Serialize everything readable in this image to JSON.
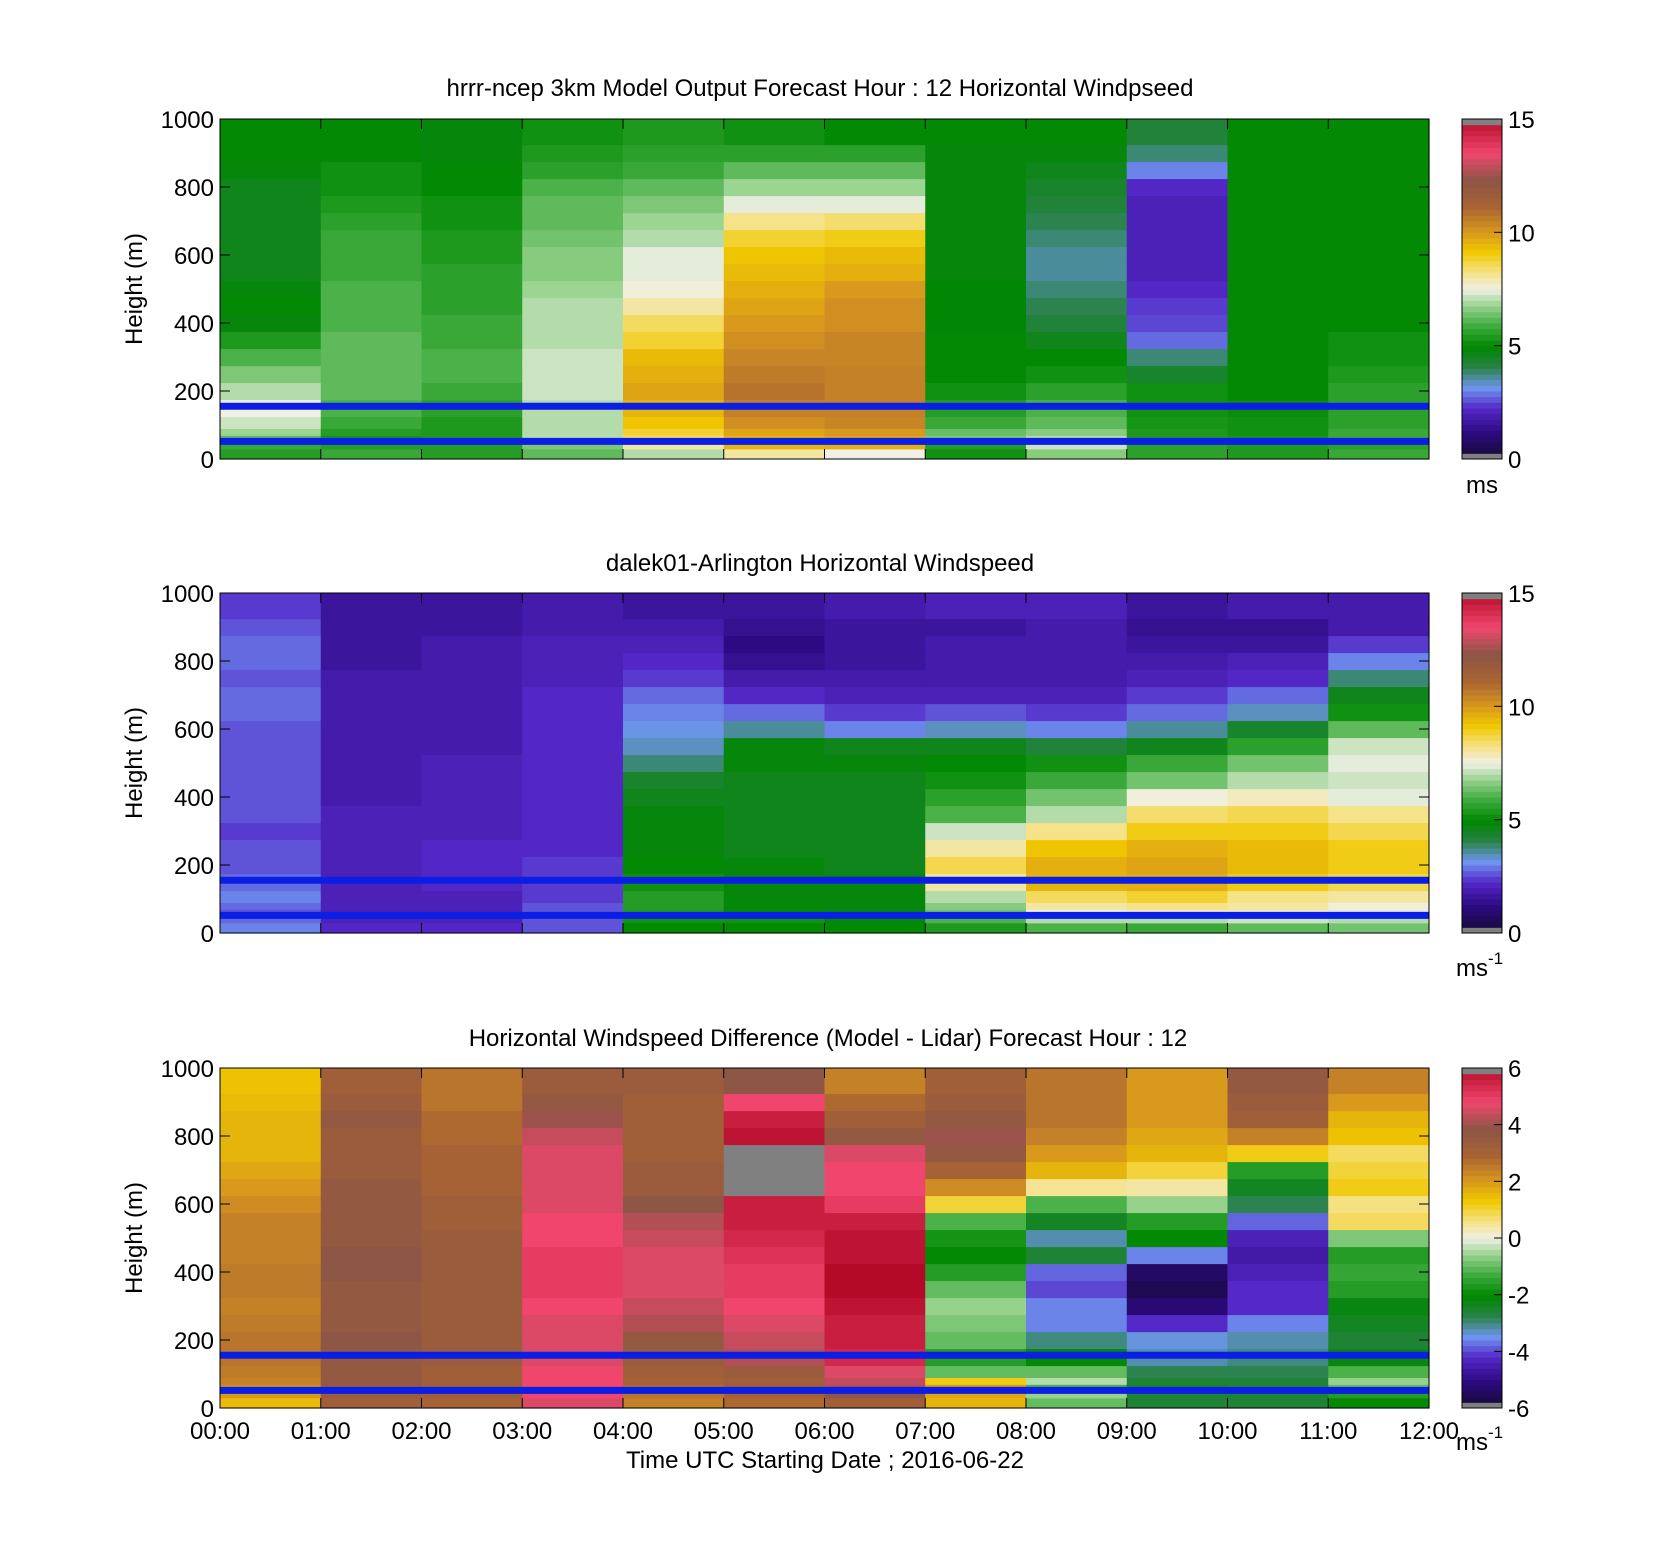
{
  "chart_data": [
    {
      "type": "heatmap",
      "title": "hrrr-ncep 3km Model Output   Forecast Hour : 12 Horizontal Windpseed",
      "ylabel": "Height (m)",
      "xlabel": "",
      "ylim": [
        0,
        1000
      ],
      "xlim": [
        0,
        12
      ],
      "yticks": [
        "0",
        "200",
        "400",
        "600",
        "800",
        "1000"
      ],
      "x_tick_count": 12,
      "x": [
        0,
        1,
        2,
        3,
        4,
        5,
        6,
        7,
        8,
        9,
        10,
        11
      ],
      "heights": [
        20,
        40,
        60,
        80,
        100,
        150,
        200,
        250,
        300,
        350,
        400,
        450,
        500,
        550,
        600,
        650,
        700,
        750,
        800,
        850,
        900,
        950
      ],
      "values": [
        [
          5.5,
          5.8,
          6.2,
          6.8,
          7.2,
          7.5,
          7.0,
          6.5,
          6.0,
          5.4,
          4.8,
          5.0,
          4.8,
          4.6,
          4.6,
          4.6,
          4.6,
          4.6,
          4.6,
          4.8,
          5.0,
          5.0
        ],
        [
          5.8,
          5.5,
          5.3,
          5.5,
          5.8,
          6.0,
          6.2,
          6.2,
          6.2,
          6.2,
          6.0,
          6.0,
          6.0,
          5.8,
          5.8,
          5.8,
          5.6,
          5.4,
          5.2,
          5.2,
          5.0,
          5.0
        ],
        [
          5.5,
          5.5,
          5.4,
          5.4,
          5.4,
          5.6,
          5.8,
          6.0,
          6.0,
          5.8,
          5.8,
          5.6,
          5.6,
          5.6,
          5.4,
          5.4,
          5.2,
          5.2,
          5.0,
          5.0,
          4.8,
          4.8
        ],
        [
          6.2,
          6.5,
          7.0,
          7.0,
          7.0,
          7.0,
          7.2,
          7.2,
          7.2,
          7.0,
          7.0,
          7.0,
          6.8,
          6.6,
          6.6,
          6.4,
          6.2,
          6.2,
          6.0,
          5.6,
          5.4,
          5.2
        ],
        [
          7.0,
          8.0,
          8.5,
          8.8,
          9.2,
          9.5,
          9.8,
          9.6,
          9.4,
          8.8,
          8.5,
          8.0,
          7.6,
          7.4,
          7.4,
          7.0,
          6.8,
          6.5,
          6.2,
          5.8,
          5.6,
          5.4
        ],
        [
          8.0,
          9.5,
          9.5,
          9.8,
          10.2,
          10.5,
          10.8,
          10.6,
          10.4,
          10.2,
          10.0,
          9.8,
          9.6,
          9.4,
          9.2,
          8.8,
          8.2,
          7.4,
          6.8,
          6.2,
          5.6,
          5.2
        ],
        [
          7.5,
          9.6,
          9.8,
          10.0,
          10.4,
          10.5,
          10.5,
          10.5,
          10.4,
          10.4,
          10.2,
          10.2,
          10.0,
          9.6,
          9.4,
          9.0,
          8.4,
          7.4,
          6.8,
          6.2,
          5.6,
          5.0
        ],
        [
          5.2,
          5.5,
          6.5,
          6.3,
          5.8,
          5.5,
          5.2,
          5.0,
          5.0,
          5.0,
          4.9,
          4.9,
          4.9,
          4.8,
          4.8,
          4.8,
          4.8,
          4.8,
          4.8,
          4.8,
          4.8,
          5.0
        ],
        [
          6.6,
          7.2,
          7.0,
          6.6,
          6.2,
          6.0,
          5.6,
          5.2,
          5.0,
          4.6,
          4.2,
          4.0,
          3.8,
          3.6,
          3.6,
          3.8,
          4.0,
          4.2,
          4.4,
          4.6,
          4.8,
          5.0
        ],
        [
          5.6,
          5.6,
          5.4,
          5.4,
          5.3,
          5.2,
          5.2,
          4.4,
          3.8,
          2.8,
          2.5,
          2.4,
          2.2,
          2.0,
          2.0,
          2.0,
          2.0,
          2.0,
          2.2,
          3.0,
          3.8,
          4.2
        ],
        [
          5.4,
          5.4,
          5.3,
          5.2,
          5.2,
          5.1,
          5.0,
          5.0,
          5.0,
          5.0,
          5.0,
          5.0,
          5.0,
          5.0,
          5.0,
          5.0,
          5.0,
          5.0,
          5.0,
          5.0,
          5.0,
          5.0
        ],
        [
          5.8,
          5.6,
          5.8,
          5.8,
          5.6,
          5.6,
          5.6,
          5.4,
          5.2,
          5.2,
          5.0,
          5.0,
          5.0,
          5.0,
          5.0,
          5.0,
          5.0,
          5.0,
          5.0,
          5.0,
          5.0,
          5.0
        ]
      ],
      "reference_lines_m": [
        155,
        52
      ],
      "colorbar": {
        "min": 0,
        "max": 15,
        "ticks": [
          "0",
          "5",
          "10",
          "15"
        ],
        "unit": "ms"
      },
      "colors": {
        "reference_line": "#0a1ee6",
        "missing": "#808080"
      }
    },
    {
      "type": "heatmap",
      "title": "dalek01-Arlington  Horizontal Windspeed",
      "ylabel": "Height (m)",
      "xlabel": "",
      "ylim": [
        0,
        1000
      ],
      "xlim": [
        0,
        12
      ],
      "yticks": [
        "0",
        "200",
        "400",
        "600",
        "800",
        "1000"
      ],
      "x_tick_count": 12,
      "x": [
        0,
        1,
        2,
        3,
        4,
        5,
        6,
        7,
        8,
        9,
        10,
        11
      ],
      "heights": [
        20,
        40,
        60,
        80,
        100,
        150,
        200,
        250,
        300,
        350,
        400,
        450,
        500,
        550,
        600,
        650,
        700,
        750,
        800,
        850,
        900,
        950
      ],
      "values": [
        [
          3.0,
          2.8,
          2.6,
          2.8,
          3.0,
          2.8,
          2.6,
          2.6,
          2.4,
          2.6,
          2.6,
          2.6,
          2.6,
          2.6,
          2.6,
          2.8,
          2.8,
          2.6,
          2.8,
          2.8,
          2.6,
          2.4
        ],
        [
          2.2,
          2.0,
          2.0,
          2.0,
          2.0,
          2.0,
          2.0,
          2.0,
          2.0,
          2.0,
          1.8,
          1.8,
          1.8,
          1.8,
          1.8,
          1.8,
          1.8,
          1.8,
          1.6,
          1.6,
          1.6,
          1.6
        ],
        [
          2.2,
          2.0,
          2.0,
          2.0,
          2.0,
          2.2,
          2.2,
          2.2,
          2.0,
          2.0,
          2.0,
          2.0,
          2.0,
          1.8,
          1.8,
          1.8,
          1.8,
          1.8,
          1.8,
          1.8,
          1.6,
          1.6
        ],
        [
          2.6,
          2.6,
          2.6,
          2.6,
          2.4,
          2.4,
          2.4,
          2.2,
          2.2,
          2.2,
          2.2,
          2.2,
          2.2,
          2.2,
          2.2,
          2.2,
          2.2,
          2.0,
          2.0,
          2.0,
          1.8,
          1.8
        ],
        [
          5.0,
          5.2,
          5.4,
          5.5,
          5.5,
          5.2,
          5.0,
          4.8,
          4.8,
          4.8,
          4.6,
          4.4,
          3.8,
          3.4,
          3.2,
          3.0,
          2.8,
          2.4,
          2.2,
          2.0,
          1.8,
          1.6
        ],
        [
          5.0,
          5.2,
          5.0,
          5.0,
          4.8,
          4.8,
          4.8,
          4.6,
          4.6,
          4.6,
          4.6,
          4.6,
          4.8,
          4.8,
          3.6,
          2.8,
          2.2,
          1.8,
          1.4,
          1.2,
          1.4,
          1.6
        ],
        [
          5.0,
          4.8,
          4.8,
          4.8,
          4.8,
          4.8,
          4.6,
          4.6,
          4.6,
          4.6,
          4.6,
          4.6,
          4.8,
          4.6,
          3.0,
          2.4,
          2.0,
          1.8,
          1.6,
          1.6,
          1.6,
          1.8
        ],
        [
          5.4,
          6.0,
          6.4,
          6.6,
          7.0,
          8.0,
          8.6,
          8.0,
          7.2,
          6.0,
          5.6,
          5.2,
          5.0,
          4.6,
          3.4,
          2.6,
          2.0,
          1.8,
          1.8,
          1.8,
          1.6,
          2.0
        ],
        [
          6.0,
          7.0,
          7.6,
          8.0,
          8.5,
          9.5,
          9.6,
          9.2,
          8.2,
          7.0,
          6.4,
          5.8,
          5.2,
          4.2,
          3.0,
          2.4,
          2.0,
          1.8,
          1.8,
          1.8,
          1.8,
          2.0
        ],
        [
          5.8,
          7.0,
          7.8,
          8.2,
          8.8,
          9.6,
          9.8,
          9.6,
          9.0,
          8.4,
          7.6,
          6.4,
          5.8,
          4.6,
          3.6,
          2.8,
          2.4,
          2.0,
          1.8,
          1.6,
          1.4,
          1.6
        ],
        [
          6.2,
          7.2,
          7.8,
          8.0,
          8.2,
          9.0,
          9.4,
          9.4,
          9.0,
          8.6,
          7.8,
          7.0,
          6.4,
          5.6,
          4.4,
          3.4,
          2.8,
          2.2,
          2.0,
          1.6,
          1.4,
          1.8
        ],
        [
          6.4,
          7.0,
          7.4,
          7.6,
          8.0,
          8.6,
          9.0,
          9.0,
          8.6,
          8.2,
          7.4,
          7.2,
          7.4,
          7.2,
          6.2,
          5.2,
          4.6,
          3.8,
          3.0,
          2.4,
          1.8,
          1.8
        ]
      ],
      "reference_lines_m": [
        155,
        52
      ],
      "colorbar": {
        "min": 0,
        "max": 15,
        "ticks": [
          "0",
          "5",
          "10",
          "15"
        ],
        "unit": "ms",
        "unit_exp": "-1"
      },
      "colors": {
        "reference_line": "#0a1ee6",
        "missing": "#808080"
      }
    },
    {
      "type": "heatmap",
      "title": "Horizontal Windspeed Difference (Model - Lidar) Forecast Hour : 12",
      "ylabel": "Height (m)",
      "xlabel": "Time UTC  Starting Date ; 2016-06-22",
      "ylim": [
        0,
        1000
      ],
      "xlim": [
        0,
        12
      ],
      "yticks": [
        "0",
        "200",
        "400",
        "600",
        "800",
        "1000"
      ],
      "xticks": [
        "00:00",
        "01:00",
        "02:00",
        "03:00",
        "04:00",
        "05:00",
        "06:00",
        "07:00",
        "08:00",
        "09:00",
        "10:00",
        "11:00",
        "12:00"
      ],
      "x": [
        0,
        1,
        2,
        3,
        4,
        5,
        6,
        7,
        8,
        9,
        10,
        11
      ],
      "heights": [
        20,
        40,
        60,
        80,
        100,
        150,
        200,
        250,
        300,
        350,
        400,
        450,
        500,
        550,
        600,
        650,
        700,
        750,
        800,
        850,
        900,
        950
      ],
      "values": [
        [
          1.5,
          2.0,
          2.2,
          2.4,
          2.5,
          2.6,
          2.6,
          2.5,
          2.4,
          2.5,
          2.5,
          2.4,
          2.4,
          2.4,
          2.2,
          2.0,
          1.8,
          1.6,
          1.6,
          1.6,
          1.5,
          1.4
        ],
        [
          3.2,
          3.4,
          3.5,
          3.6,
          3.6,
          3.6,
          3.8,
          3.6,
          3.6,
          3.6,
          3.8,
          3.8,
          3.6,
          3.6,
          3.6,
          3.6,
          3.4,
          3.4,
          3.4,
          3.6,
          3.4,
          3.2
        ],
        [
          3.0,
          3.2,
          3.2,
          3.2,
          3.2,
          3.4,
          3.4,
          3.4,
          3.4,
          3.4,
          3.4,
          3.4,
          3.4,
          3.2,
          3.2,
          3.0,
          3.0,
          3.0,
          2.8,
          2.8,
          2.6,
          2.6
        ],
        [
          4.6,
          4.8,
          4.8,
          4.8,
          4.8,
          4.6,
          4.6,
          4.6,
          4.8,
          5.0,
          5.0,
          5.0,
          4.8,
          4.8,
          4.6,
          4.6,
          4.6,
          4.6,
          4.4,
          4.0,
          3.6,
          3.4
        ],
        [
          2.4,
          2.6,
          2.8,
          3.0,
          3.2,
          3.4,
          3.6,
          4.2,
          4.4,
          4.6,
          4.6,
          4.6,
          4.4,
          4.2,
          3.8,
          3.4,
          3.4,
          3.2,
          3.2,
          3.2,
          3.2,
          3.4
        ],
        [
          2.8,
          3.0,
          3.2,
          3.2,
          3.4,
          4.2,
          4.4,
          4.6,
          4.8,
          5.0,
          5.0,
          5.2,
          5.4,
          5.6,
          5.6,
          null,
          null,
          null,
          5.8,
          5.6,
          4.8,
          3.8
        ],
        [
          3.2,
          3.8,
          4.2,
          4.4,
          4.6,
          5.4,
          5.6,
          5.6,
          5.8,
          6.0,
          6.0,
          5.8,
          5.8,
          5.6,
          5.0,
          4.8,
          4.8,
          4.6,
          3.6,
          3.2,
          2.8,
          2.4
        ],
        [
          1.6,
          1.8,
          2.0,
          1.2,
          -1.0,
          -1.6,
          -1.0,
          -0.8,
          -0.6,
          -1.0,
          -1.6,
          -2.0,
          -1.8,
          -1.2,
          1.0,
          2.2,
          3.0,
          3.6,
          4.0,
          3.6,
          3.4,
          3.2
        ],
        [
          -1.0,
          -0.6,
          -1.2,
          -0.4,
          -1.0,
          -2.0,
          -3.0,
          -3.6,
          -3.6,
          -4.0,
          -3.8,
          -2.6,
          -3.2,
          -2.4,
          -1.2,
          0.5,
          1.6,
          2.0,
          2.4,
          2.6,
          2.6,
          2.6
        ],
        [
          -2.6,
          -2.6,
          -2.4,
          -2.6,
          -2.8,
          -3.2,
          -3.4,
          -4.2,
          -5.2,
          -5.6,
          -5.4,
          -3.6,
          -2.0,
          -1.6,
          -0.6,
          0.4,
          1.0,
          1.6,
          1.8,
          2.0,
          2.0,
          2.0
        ],
        [
          -2.6,
          -2.6,
          -2.6,
          -2.6,
          -2.8,
          -3.0,
          -3.2,
          -3.6,
          -4.2,
          -4.2,
          -4.4,
          -4.6,
          -4.4,
          -3.8,
          -2.8,
          -2.4,
          -1.6,
          1.2,
          2.4,
          3.2,
          3.4,
          3.6
        ],
        [
          -2.0,
          -1.6,
          -1.0,
          -0.6,
          -1.2,
          -2.2,
          -2.6,
          -2.4,
          -2.2,
          -1.6,
          -1.4,
          -1.6,
          -0.8,
          0.8,
          0.6,
          1.2,
          1.0,
          0.8,
          1.4,
          1.6,
          2.0,
          2.4
        ]
      ],
      "reference_lines_m": [
        155,
        52
      ],
      "colorbar": {
        "min": -6,
        "max": 6,
        "ticks": [
          "-6",
          "-4",
          "-2",
          "0",
          "2",
          "4",
          "6"
        ],
        "unit": "ms",
        "unit_exp": "-1"
      },
      "colors": {
        "reference_line": "#0a1ee6",
        "missing": "#808080"
      }
    }
  ]
}
